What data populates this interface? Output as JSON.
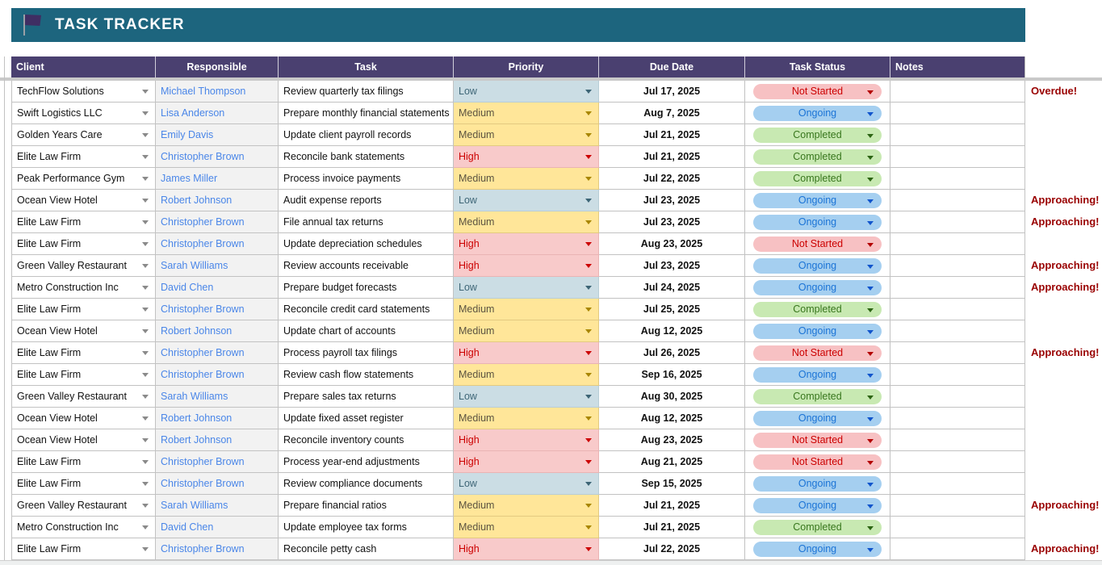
{
  "header": {
    "title": "TASK TRACKER",
    "icon": "flag-icon"
  },
  "table": {
    "headers": [
      "Client",
      "Responsible",
      "Task",
      "Priority",
      "Due Date",
      "Task Status",
      "Notes"
    ],
    "rows": [
      {
        "client": "TechFlow Solutions",
        "responsible": "Michael Thompson",
        "task": "Review quarterly tax filings",
        "priority": "Low",
        "due": "Jul 17, 2025",
        "status": "Not Started",
        "note": "",
        "alert": "Overdue!"
      },
      {
        "client": "Swift Logistics LLC",
        "responsible": "Lisa Anderson",
        "task": "Prepare monthly financial statements",
        "priority": "Medium",
        "due": "Aug 7, 2025",
        "status": "Ongoing",
        "note": "",
        "alert": ""
      },
      {
        "client": "Golden Years Care",
        "responsible": "Emily Davis",
        "task": "Update client payroll records",
        "priority": "Medium",
        "due": "Jul 21, 2025",
        "status": "Completed",
        "note": "",
        "alert": ""
      },
      {
        "client": "Elite Law Firm",
        "responsible": "Christopher Brown",
        "task": "Reconcile bank statements",
        "priority": "High",
        "due": "Jul 21, 2025",
        "status": "Completed",
        "note": "",
        "alert": ""
      },
      {
        "client": "Peak Performance Gym",
        "responsible": "James Miller",
        "task": "Process invoice payments",
        "priority": "Medium",
        "due": "Jul 22, 2025",
        "status": "Completed",
        "note": "",
        "alert": ""
      },
      {
        "client": "Ocean View Hotel",
        "responsible": "Robert Johnson",
        "task": "Audit expense reports",
        "priority": "Low",
        "due": "Jul 23, 2025",
        "status": "Ongoing",
        "note": "",
        "alert": "Approaching!"
      },
      {
        "client": "Elite Law Firm",
        "responsible": "Christopher Brown",
        "task": "File annual tax returns",
        "priority": "Medium",
        "due": "Jul 23, 2025",
        "status": "Ongoing",
        "note": "",
        "alert": "Approaching!"
      },
      {
        "client": "Elite Law Firm",
        "responsible": "Christopher Brown",
        "task": "Update depreciation schedules",
        "priority": "High",
        "due": "Aug 23, 2025",
        "status": "Not Started",
        "note": "",
        "alert": ""
      },
      {
        "client": "Green Valley Restaurant",
        "responsible": "Sarah Williams",
        "task": "Review accounts receivable",
        "priority": "High",
        "due": "Jul 23, 2025",
        "status": "Ongoing",
        "note": "",
        "alert": "Approaching!"
      },
      {
        "client": "Metro Construction Inc",
        "responsible": "David Chen",
        "task": "Prepare budget forecasts",
        "priority": "Low",
        "due": "Jul 24, 2025",
        "status": "Ongoing",
        "note": "",
        "alert": "Approaching!"
      },
      {
        "client": "Elite Law Firm",
        "responsible": "Christopher Brown",
        "task": "Reconcile credit card statements",
        "priority": "Medium",
        "due": "Jul 25, 2025",
        "status": "Completed",
        "note": "",
        "alert": ""
      },
      {
        "client": "Ocean View Hotel",
        "responsible": "Robert Johnson",
        "task": "Update chart of accounts",
        "priority": "Medium",
        "due": "Aug 12, 2025",
        "status": "Ongoing",
        "note": "",
        "alert": ""
      },
      {
        "client": "Elite Law Firm",
        "responsible": "Christopher Brown",
        "task": "Process payroll tax filings",
        "priority": "High",
        "due": "Jul 26, 2025",
        "status": "Not Started",
        "note": "",
        "alert": "Approaching!"
      },
      {
        "client": "Elite Law Firm",
        "responsible": "Christopher Brown",
        "task": "Review cash flow statements",
        "priority": "Medium",
        "due": "Sep 16, 2025",
        "status": "Ongoing",
        "note": "",
        "alert": ""
      },
      {
        "client": "Green Valley Restaurant",
        "responsible": "Sarah Williams",
        "task": "Prepare sales tax returns",
        "priority": "Low",
        "due": "Aug 30, 2025",
        "status": "Completed",
        "note": "",
        "alert": ""
      },
      {
        "client": "Ocean View Hotel",
        "responsible": "Robert Johnson",
        "task": "Update fixed asset register",
        "priority": "Medium",
        "due": "Aug 12, 2025",
        "status": "Ongoing",
        "note": "",
        "alert": ""
      },
      {
        "client": "Ocean View Hotel",
        "responsible": "Robert Johnson",
        "task": "Reconcile inventory counts",
        "priority": "High",
        "due": "Aug 23, 2025",
        "status": "Not Started",
        "note": "",
        "alert": ""
      },
      {
        "client": "Elite Law Firm",
        "responsible": "Christopher Brown",
        "task": "Process year-end adjustments",
        "priority": "High",
        "due": "Aug 21, 2025",
        "status": "Not Started",
        "note": "",
        "alert": ""
      },
      {
        "client": "Elite Law Firm",
        "responsible": "Christopher Brown",
        "task": "Review compliance documents",
        "priority": "Low",
        "due": "Sep 15, 2025",
        "status": "Ongoing",
        "note": "",
        "alert": ""
      },
      {
        "client": "Green Valley Restaurant",
        "responsible": "Sarah Williams",
        "task": "Prepare financial ratios",
        "priority": "Medium",
        "due": "Jul 21, 2025",
        "status": "Ongoing",
        "note": "",
        "alert": "Approaching!"
      },
      {
        "client": "Metro Construction Inc",
        "responsible": "David Chen",
        "task": "Update employee tax forms",
        "priority": "Medium",
        "due": "Jul 21, 2025",
        "status": "Completed",
        "note": "",
        "alert": ""
      },
      {
        "client": "Elite Law Firm",
        "responsible": "Christopher Brown",
        "task": "Reconcile petty cash",
        "priority": "High",
        "due": "Jul 22, 2025",
        "status": "Ongoing",
        "note": "",
        "alert": "Approaching!"
      }
    ]
  },
  "colors": {
    "banner_teal": "#1d657e",
    "header_purple": "#4a4070",
    "flag_purple": "#3f2e63",
    "link_blue": "#4a86e8",
    "alert_red": "#990000",
    "priority_low_bg": "#cbdde4",
    "priority_medium_bg": "#ffe699",
    "priority_high_bg": "#f8caca",
    "status_not_started_bg": "#f7c1c3",
    "status_not_started_text": "#cc0000",
    "status_ongoing_bg": "#a5cff0",
    "status_ongoing_text": "#1a73d6",
    "status_completed_bg": "#c8e9b2",
    "status_completed_text": "#38761d"
  }
}
